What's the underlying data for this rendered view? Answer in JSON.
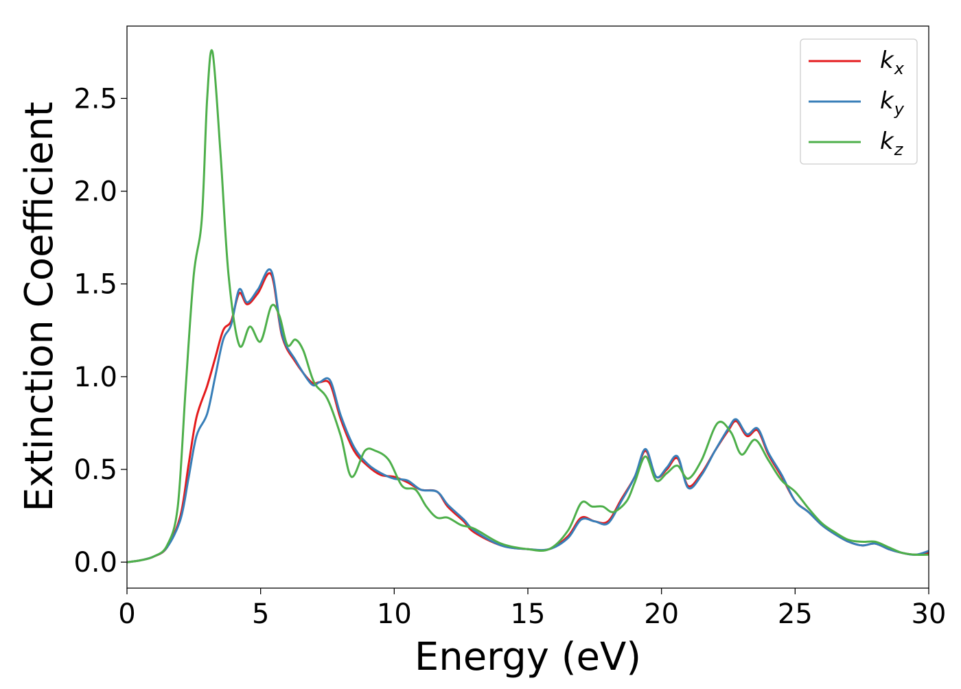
{
  "chart_data": {
    "type": "line",
    "title": "",
    "xlabel": "Energy (eV)",
    "ylabel": "Extinction Coefficient",
    "xlim": [
      0,
      30
    ],
    "ylim": [
      -0.14,
      2.89
    ],
    "xticks": [
      0,
      5,
      10,
      15,
      20,
      25,
      30
    ],
    "xtick_labels": [
      "0",
      "5",
      "10",
      "15",
      "20",
      "25",
      "30"
    ],
    "yticks": [
      0.0,
      0.5,
      1.0,
      1.5,
      2.0,
      2.5
    ],
    "ytick_labels": [
      "0.0",
      "0.5",
      "1.0",
      "1.5",
      "2.0",
      "2.5"
    ],
    "grid": false,
    "legend_position": "top-right",
    "series": [
      {
        "name": "k",
        "subscript": "x",
        "color": "#e41a1c",
        "x": [
          0,
          0.5,
          1.0,
          1.5,
          2.0,
          2.3,
          2.6,
          3.0,
          3.3,
          3.6,
          3.9,
          4.2,
          4.5,
          4.9,
          5.4,
          5.8,
          6.3,
          6.9,
          7.2,
          7.6,
          8.0,
          8.5,
          9.0,
          9.5,
          10.0,
          10.5,
          11.0,
          11.6,
          12.0,
          12.6,
          13.0,
          14.0,
          15.0,
          15.8,
          16.5,
          17.0,
          17.5,
          18.0,
          18.5,
          19.0,
          19.4,
          19.8,
          20.2,
          20.6,
          21.0,
          21.5,
          22.0,
          22.5,
          22.8,
          23.2,
          23.6,
          24.0,
          24.5,
          25.0,
          25.5,
          26.0,
          26.5,
          27.0,
          27.5,
          28.0,
          28.5,
          29.0,
          29.5,
          30.0
        ],
        "y": [
          0.0,
          0.01,
          0.03,
          0.08,
          0.25,
          0.52,
          0.78,
          0.95,
          1.1,
          1.25,
          1.3,
          1.45,
          1.39,
          1.45,
          1.55,
          1.22,
          1.08,
          0.97,
          0.97,
          0.96,
          0.77,
          0.6,
          0.52,
          0.47,
          0.46,
          0.43,
          0.39,
          0.38,
          0.3,
          0.22,
          0.16,
          0.09,
          0.07,
          0.07,
          0.14,
          0.24,
          0.22,
          0.22,
          0.34,
          0.46,
          0.6,
          0.46,
          0.5,
          0.56,
          0.41,
          0.48,
          0.6,
          0.71,
          0.76,
          0.68,
          0.71,
          0.58,
          0.46,
          0.33,
          0.27,
          0.2,
          0.15,
          0.11,
          0.09,
          0.1,
          0.07,
          0.05,
          0.04,
          0.05
        ]
      },
      {
        "name": "k",
        "subscript": "y",
        "color": "#377eb8",
        "x": [
          0,
          0.5,
          1.0,
          1.5,
          2.0,
          2.3,
          2.6,
          3.0,
          3.3,
          3.6,
          3.9,
          4.2,
          4.5,
          4.9,
          5.4,
          5.8,
          6.3,
          6.9,
          7.2,
          7.6,
          8.0,
          8.5,
          9.0,
          9.5,
          10.0,
          10.5,
          11.0,
          11.6,
          12.0,
          12.6,
          13.0,
          14.0,
          15.0,
          15.8,
          16.5,
          17.0,
          17.5,
          18.0,
          18.5,
          19.0,
          19.4,
          19.8,
          20.2,
          20.6,
          21.0,
          21.5,
          22.0,
          22.5,
          22.8,
          23.2,
          23.6,
          24.0,
          24.5,
          25.0,
          25.5,
          26.0,
          26.5,
          27.0,
          27.5,
          28.0,
          28.5,
          29.0,
          29.5,
          30.0
        ],
        "y": [
          0.0,
          0.01,
          0.03,
          0.08,
          0.23,
          0.45,
          0.68,
          0.8,
          1.0,
          1.2,
          1.28,
          1.47,
          1.4,
          1.47,
          1.57,
          1.23,
          1.09,
          0.96,
          0.97,
          0.98,
          0.79,
          0.62,
          0.53,
          0.48,
          0.45,
          0.44,
          0.39,
          0.38,
          0.31,
          0.23,
          0.17,
          0.09,
          0.07,
          0.07,
          0.13,
          0.23,
          0.22,
          0.21,
          0.33,
          0.46,
          0.61,
          0.46,
          0.51,
          0.57,
          0.4,
          0.47,
          0.6,
          0.72,
          0.77,
          0.69,
          0.72,
          0.59,
          0.47,
          0.33,
          0.27,
          0.2,
          0.15,
          0.11,
          0.09,
          0.1,
          0.07,
          0.05,
          0.04,
          0.06
        ]
      },
      {
        "name": "k",
        "subscript": "z",
        "color": "#4daf4a",
        "x": [
          0,
          0.5,
          1.0,
          1.5,
          1.9,
          2.2,
          2.5,
          2.8,
          3.0,
          3.2,
          3.5,
          3.8,
          4.2,
          4.6,
          5.0,
          5.4,
          5.7,
          6.0,
          6.3,
          6.6,
          7.0,
          7.5,
          8.0,
          8.4,
          8.9,
          9.3,
          9.8,
          10.3,
          10.8,
          11.2,
          11.6,
          12.0,
          12.5,
          13.0,
          14.0,
          15.0,
          15.8,
          16.5,
          17.0,
          17.4,
          17.8,
          18.2,
          18.7,
          19.0,
          19.4,
          19.8,
          20.2,
          20.6,
          21.0,
          21.5,
          22.1,
          22.6,
          23.0,
          23.5,
          24.0,
          24.5,
          25.0,
          25.5,
          26.0,
          26.5,
          27.0,
          27.5,
          28.0,
          28.5,
          29.0,
          29.5,
          30.0
        ],
        "y": [
          0.0,
          0.01,
          0.03,
          0.09,
          0.3,
          0.95,
          1.55,
          1.85,
          2.5,
          2.75,
          2.2,
          1.55,
          1.17,
          1.27,
          1.19,
          1.38,
          1.33,
          1.17,
          1.2,
          1.14,
          0.97,
          0.88,
          0.68,
          0.46,
          0.6,
          0.6,
          0.55,
          0.41,
          0.39,
          0.3,
          0.24,
          0.24,
          0.2,
          0.18,
          0.1,
          0.07,
          0.07,
          0.17,
          0.32,
          0.3,
          0.3,
          0.27,
          0.33,
          0.43,
          0.57,
          0.44,
          0.48,
          0.52,
          0.45,
          0.55,
          0.75,
          0.7,
          0.58,
          0.66,
          0.55,
          0.44,
          0.38,
          0.29,
          0.21,
          0.16,
          0.12,
          0.11,
          0.11,
          0.08,
          0.05,
          0.04,
          0.04
        ]
      }
    ]
  }
}
